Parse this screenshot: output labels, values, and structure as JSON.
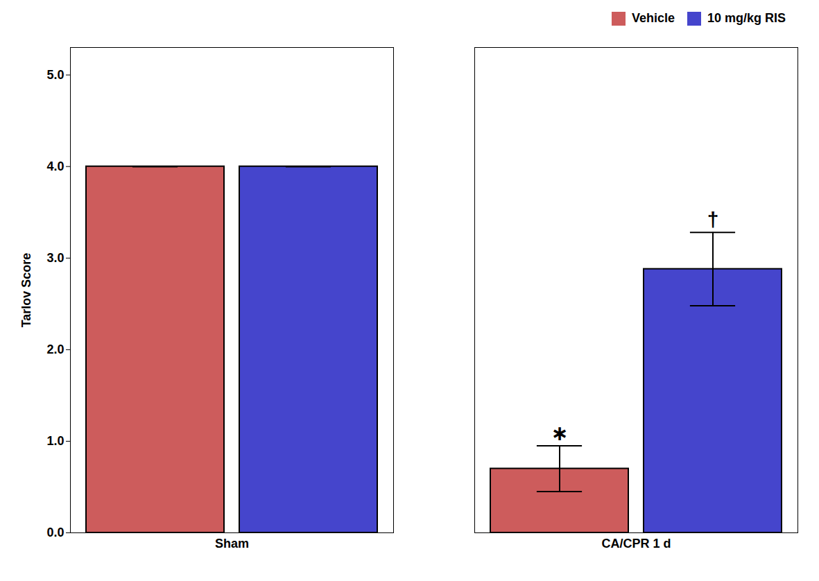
{
  "chart_data": {
    "type": "bar",
    "categories": [
      "Sham",
      "CA/CPR 1 d"
    ],
    "series": [
      {
        "name": "Vehicle",
        "color": "#CD5C5C",
        "values": [
          4.0,
          0.7
        ],
        "errors": [
          0.0,
          0.25
        ]
      },
      {
        "name": "10 mg/kg RIS",
        "color": "#4545CC",
        "values": [
          4.0,
          2.88
        ],
        "errors": [
          0.0,
          0.4
        ]
      }
    ],
    "ylabel": "Tarlov Score",
    "ylim": [
      0,
      5.3
    ],
    "yticks": [
      0,
      1,
      2,
      3,
      4,
      5
    ],
    "legend": "upper right",
    "annotations": [
      {
        "text": "∗",
        "series": "Vehicle",
        "category": "CA/CPR 1 d"
      },
      {
        "text": "†",
        "series": "10 mg/kg RIS",
        "category": "CA/CPR 1 d"
      }
    ]
  }
}
